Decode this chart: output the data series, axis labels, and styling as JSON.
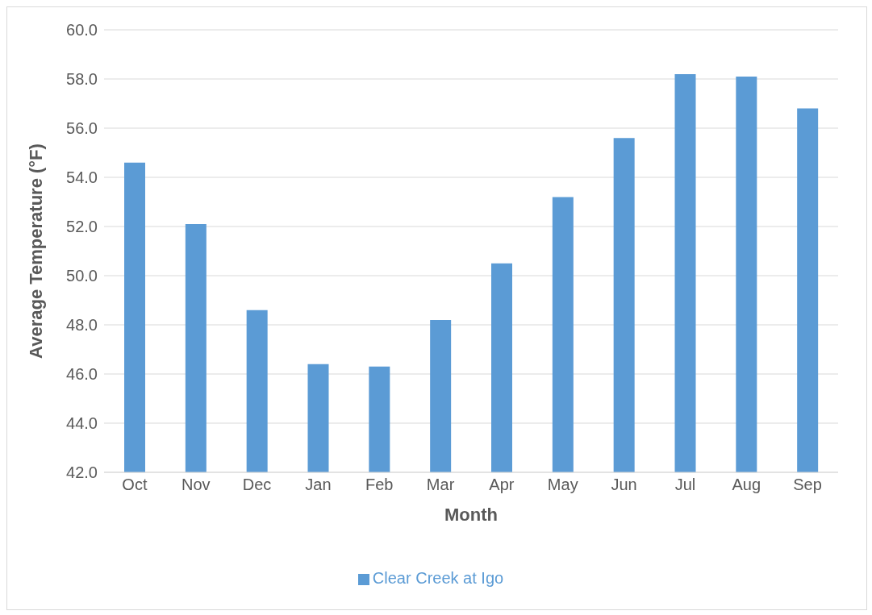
{
  "chart_data": {
    "type": "bar",
    "xlabel": "Month",
    "ylabel": "Average Temperature (°F)",
    "categories": [
      "Oct",
      "Nov",
      "Dec",
      "Jan",
      "Feb",
      "Mar",
      "Apr",
      "May",
      "Jun",
      "Jul",
      "Aug",
      "Sep"
    ],
    "series": [
      {
        "name": "Clear Creek at Igo",
        "color": "#5b9bd5",
        "values": [
          54.6,
          52.1,
          48.6,
          46.4,
          46.3,
          48.2,
          50.5,
          53.2,
          55.6,
          58.2,
          58.1,
          56.8
        ]
      }
    ],
    "ylim": [
      42,
      60
    ],
    "yticks": [
      {
        "value": 42,
        "label": "42.0"
      },
      {
        "value": 44,
        "label": "44.0"
      },
      {
        "value": 46,
        "label": "46.0"
      },
      {
        "value": 48,
        "label": "48.0"
      },
      {
        "value": 50,
        "label": "50.0"
      },
      {
        "value": 52,
        "label": "52.0"
      },
      {
        "value": 54,
        "label": "54.0"
      },
      {
        "value": 56,
        "label": "56.0"
      },
      {
        "value": 58,
        "label": "58.0"
      },
      {
        "value": 60,
        "label": "60.0"
      }
    ],
    "grid": "y",
    "legend": "bottom"
  }
}
